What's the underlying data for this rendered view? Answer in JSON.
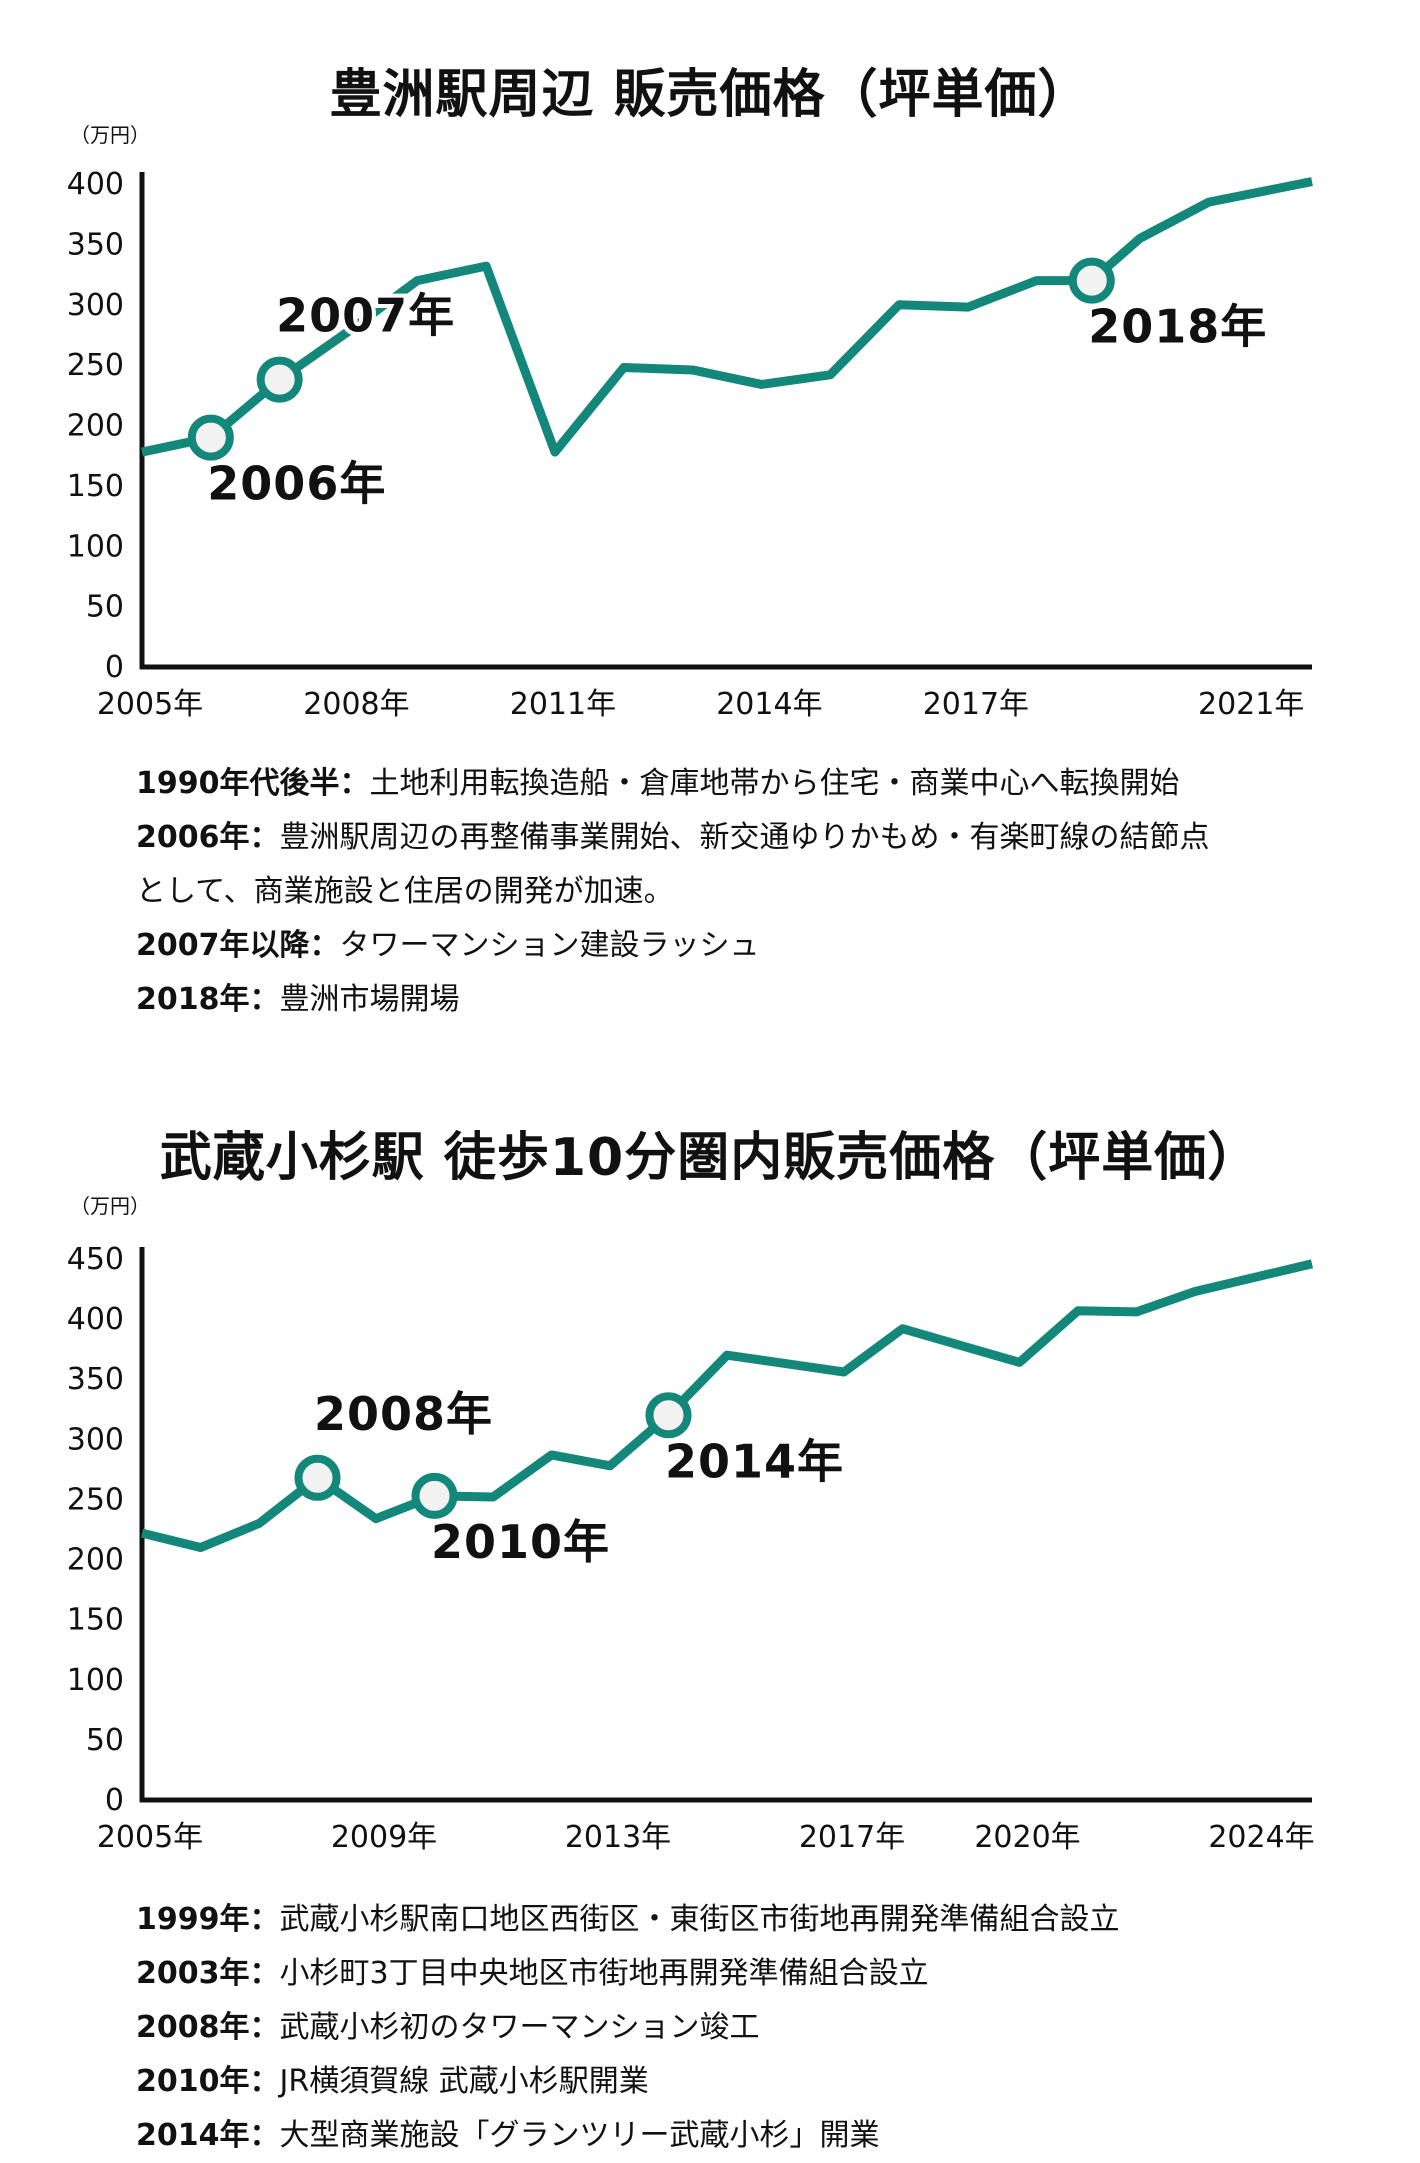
{
  "colors": {
    "line": "#13887a",
    "marker_fill": "#f2f2f2",
    "axis": "#111111",
    "text": "#111111"
  },
  "chart_data": [
    {
      "type": "line",
      "title": "豊洲駅周辺 販売価格（坪単価）",
      "unit_label": "（万円）",
      "ylim": [
        0,
        400
      ],
      "yticks": [
        0,
        50,
        100,
        150,
        200,
        250,
        300,
        350,
        400
      ],
      "xlim": [
        2005,
        2022
      ],
      "xticks": [
        {
          "x": 2005,
          "label": "2005年"
        },
        {
          "x": 2008,
          "label": "2008年"
        },
        {
          "x": 2011,
          "label": "2011年"
        },
        {
          "x": 2014,
          "label": "2014年"
        },
        {
          "x": 2017,
          "label": "2017年"
        },
        {
          "x": 2021,
          "label": "2021年"
        }
      ],
      "series": [
        {
          "values": [
            {
              "x": 2005.0,
              "y": 178
            },
            {
              "x": 2006.0,
              "y": 190
            },
            {
              "x": 2007.0,
              "y": 238
            },
            {
              "x": 2008.0,
              "y": 278
            },
            {
              "x": 2009.0,
              "y": 320
            },
            {
              "x": 2010.0,
              "y": 332
            },
            {
              "x": 2011.0,
              "y": 178
            },
            {
              "x": 2012.0,
              "y": 248
            },
            {
              "x": 2013.0,
              "y": 246
            },
            {
              "x": 2014.0,
              "y": 234
            },
            {
              "x": 2015.0,
              "y": 242
            },
            {
              "x": 2016.0,
              "y": 300
            },
            {
              "x": 2017.0,
              "y": 298
            },
            {
              "x": 2018.0,
              "y": 320
            },
            {
              "x": 2018.8,
              "y": 320
            },
            {
              "x": 2019.5,
              "y": 355
            },
            {
              "x": 2020.5,
              "y": 385
            },
            {
              "x": 2022.0,
              "y": 402
            }
          ]
        }
      ],
      "markers": [
        {
          "x": 2006.0,
          "y": 190,
          "label": "2006年",
          "pos": "below"
        },
        {
          "x": 2007.0,
          "y": 238,
          "label": "2007年",
          "pos": "above"
        },
        {
          "x": 2018.8,
          "y": 320,
          "label": "2018年",
          "pos": "below"
        }
      ]
    },
    {
      "type": "line",
      "title": "武蔵小杉駅 徒歩10分圏内販売価格（坪単価）",
      "unit_label": "（万円）",
      "ylim": [
        0,
        450
      ],
      "yticks": [
        0,
        50,
        100,
        150,
        200,
        250,
        300,
        350,
        400,
        450
      ],
      "xlim": [
        2005,
        2025
      ],
      "xticks": [
        {
          "x": 2005,
          "label": "2005年"
        },
        {
          "x": 2009,
          "label": "2009年"
        },
        {
          "x": 2013,
          "label": "2013年"
        },
        {
          "x": 2017,
          "label": "2017年"
        },
        {
          "x": 2020,
          "label": "2020年"
        },
        {
          "x": 2024,
          "label": "2024年"
        }
      ],
      "series": [
        {
          "values": [
            {
              "x": 2005.0,
              "y": 222
            },
            {
              "x": 2006.0,
              "y": 210
            },
            {
              "x": 2007.0,
              "y": 230
            },
            {
              "x": 2008.0,
              "y": 268
            },
            {
              "x": 2009.0,
              "y": 234
            },
            {
              "x": 2010.0,
              "y": 253
            },
            {
              "x": 2011.0,
              "y": 252
            },
            {
              "x": 2012.0,
              "y": 287
            },
            {
              "x": 2013.0,
              "y": 278
            },
            {
              "x": 2014.0,
              "y": 320
            },
            {
              "x": 2015.0,
              "y": 370
            },
            {
              "x": 2016.0,
              "y": 363
            },
            {
              "x": 2017.0,
              "y": 356
            },
            {
              "x": 2018.0,
              "y": 392
            },
            {
              "x": 2019.0,
              "y": 378
            },
            {
              "x": 2020.0,
              "y": 364
            },
            {
              "x": 2021.0,
              "y": 407
            },
            {
              "x": 2022.0,
              "y": 406
            },
            {
              "x": 2023.0,
              "y": 423
            },
            {
              "x": 2025.0,
              "y": 446
            }
          ]
        }
      ],
      "markers": [
        {
          "x": 2008.0,
          "y": 268,
          "label": "2008年",
          "pos": "above"
        },
        {
          "x": 2010.0,
          "y": 253,
          "label": "2010年",
          "pos": "below"
        },
        {
          "x": 2014.0,
          "y": 320,
          "label": "2014年",
          "pos": "below"
        }
      ]
    }
  ],
  "notes_top": [
    {
      "label": "1990年代後半：",
      "text": "土地利用転換造船・倉庫地帯から住宅・商業中心へ転換開始"
    },
    {
      "label": "2006年：",
      "text": "豊洲駅周辺の再整備事業開始、新交通ゆりかもめ・有楽町線の結節点"
    },
    {
      "label": "",
      "text": "として、商業施設と住居の開発が加速。"
    },
    {
      "label": "2007年以降：",
      "text": "タワーマンション建設ラッシュ"
    },
    {
      "label": "2018年：",
      "text": "豊洲市場開場"
    }
  ],
  "notes_bottom": [
    {
      "label": "1999年：",
      "text": "武蔵小杉駅南口地区西街区・東街区市街地再開発準備組合設立"
    },
    {
      "label": "2003年：",
      "text": "小杉町3丁目中央地区市街地再開発準備組合設立"
    },
    {
      "label": "2008年：",
      "text": "武蔵小杉初のタワーマンション竣工"
    },
    {
      "label": "2010年：",
      "text": "JR横須賀線 武蔵小杉駅開業"
    },
    {
      "label": "2014年：",
      "text": "大型商業施設「グランツリー武蔵小杉」開業"
    }
  ]
}
